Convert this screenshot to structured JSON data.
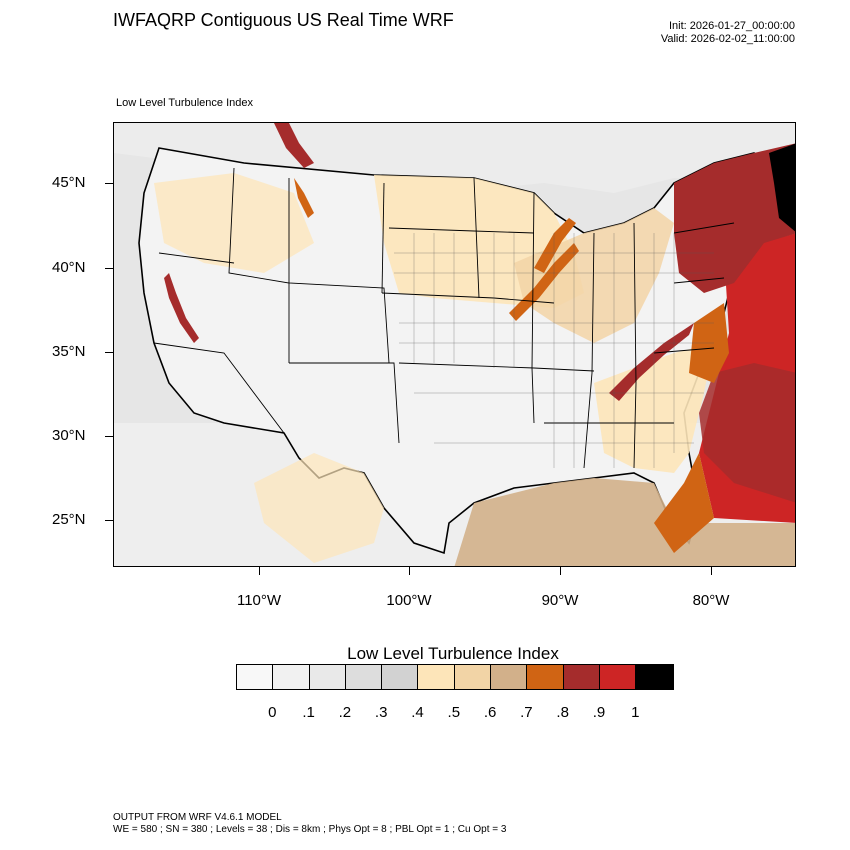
{
  "header": {
    "title": "IWFAQRP Contiguous US Real Time WRF",
    "init": "Init: 2026-01-27_00:00:00",
    "valid": "Valid: 2026-02-02_11:00:00"
  },
  "map": {
    "subtitle": "Low Level Turbulence Index",
    "lat_labels": [
      "45°N",
      "40°N",
      "35°N",
      "30°N",
      "25°N"
    ],
    "lon_labels": [
      "110°W",
      "100°W",
      "90°W",
      "80°W"
    ]
  },
  "legend": {
    "title": "Low Level Turbulence Index",
    "labels": [
      "0",
      ".1",
      ".2",
      ".3",
      ".4",
      ".5",
      ".6",
      ".7",
      ".8",
      ".9",
      "1"
    ],
    "colors": [
      "#f8f8f8",
      "#f1f1f1",
      "#e9e9e9",
      "#dddddd",
      "#d2d2d2",
      "#fde5b9",
      "#f2d4a6",
      "#d2b08a",
      "#d06414",
      "#a52c2c",
      "#cd2525",
      "#000000"
    ]
  },
  "footer": {
    "line1": "OUTPUT FROM WRF V4.6.1 MODEL",
    "line2": "WE = 580 ; SN = 380 ; Levels = 38 ; Dis = 8km ; Phys Opt = 8 ; PBL Opt = 1 ; Cu Opt = 3"
  }
}
